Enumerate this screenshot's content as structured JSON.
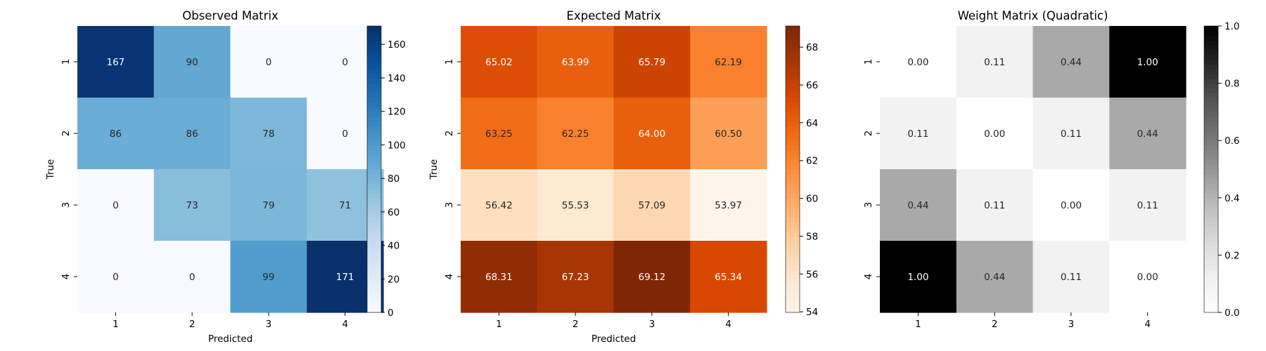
{
  "chart_data": [
    {
      "type": "heatmap",
      "title": "Observed Matrix",
      "xlabel": "Predicted",
      "ylabel": "True",
      "x_categories": [
        "1",
        "2",
        "3",
        "4"
      ],
      "y_categories": [
        "1",
        "2",
        "3",
        "4"
      ],
      "values": [
        [
          167,
          90,
          0,
          0
        ],
        [
          86,
          86,
          78,
          0
        ],
        [
          0,
          73,
          79,
          71
        ],
        [
          0,
          0,
          99,
          171
        ]
      ],
      "cell_labels": [
        [
          "167",
          "90",
          "0",
          "0"
        ],
        [
          "86",
          "86",
          "78",
          "0"
        ],
        [
          "0",
          "73",
          "79",
          "71"
        ],
        [
          "0",
          "0",
          "99",
          "171"
        ]
      ],
      "colormap": "Blues",
      "vmin": 0,
      "vmax": 171,
      "colorbar_ticks": [
        0,
        20,
        40,
        60,
        80,
        100,
        120,
        140,
        160
      ]
    },
    {
      "type": "heatmap",
      "title": "Expected Matrix",
      "xlabel": "Predicted",
      "ylabel": "True",
      "x_categories": [
        "1",
        "2",
        "3",
        "4"
      ],
      "y_categories": [
        "1",
        "2",
        "3",
        "4"
      ],
      "values": [
        [
          65.02,
          63.99,
          65.79,
          62.19
        ],
        [
          63.25,
          62.25,
          64.0,
          60.5
        ],
        [
          56.42,
          55.53,
          57.09,
          53.97
        ],
        [
          68.31,
          67.23,
          69.12,
          65.34
        ]
      ],
      "cell_labels": [
        [
          "65.02",
          "63.99",
          "65.79",
          "62.19"
        ],
        [
          "63.25",
          "62.25",
          "64.00",
          "60.50"
        ],
        [
          "56.42",
          "55.53",
          "57.09",
          "53.97"
        ],
        [
          "68.31",
          "67.23",
          "69.12",
          "65.34"
        ]
      ],
      "colormap": "Oranges",
      "vmin": 53.97,
      "vmax": 69.12,
      "colorbar_ticks": [
        54,
        56,
        58,
        60,
        62,
        64,
        66,
        68
      ]
    },
    {
      "type": "heatmap",
      "title": "Weight Matrix (Quadratic)",
      "xlabel": "",
      "ylabel": "",
      "x_categories": [
        "1",
        "2",
        "3",
        "4"
      ],
      "y_categories": [
        "1",
        "2",
        "3",
        "4"
      ],
      "values": [
        [
          0.0,
          0.11,
          0.44,
          1.0
        ],
        [
          0.11,
          0.0,
          0.11,
          0.44
        ],
        [
          0.44,
          0.11,
          0.0,
          0.11
        ],
        [
          1.0,
          0.44,
          0.11,
          0.0
        ]
      ],
      "cell_labels": [
        [
          "0.00",
          "0.11",
          "0.44",
          "1.00"
        ],
        [
          "0.11",
          "0.00",
          "0.11",
          "0.44"
        ],
        [
          "0.44",
          "0.11",
          "0.00",
          "0.11"
        ],
        [
          "1.00",
          "0.44",
          "0.11",
          "0.00"
        ]
      ],
      "colormap": "Greys",
      "vmin": 0,
      "vmax": 1,
      "colorbar_ticks": [
        0.0,
        0.2,
        0.4,
        0.6,
        0.8,
        1.0
      ],
      "colorbar_tick_labels": [
        "0.0",
        "0.2",
        "0.4",
        "0.6",
        "0.8",
        "1.0"
      ]
    }
  ]
}
